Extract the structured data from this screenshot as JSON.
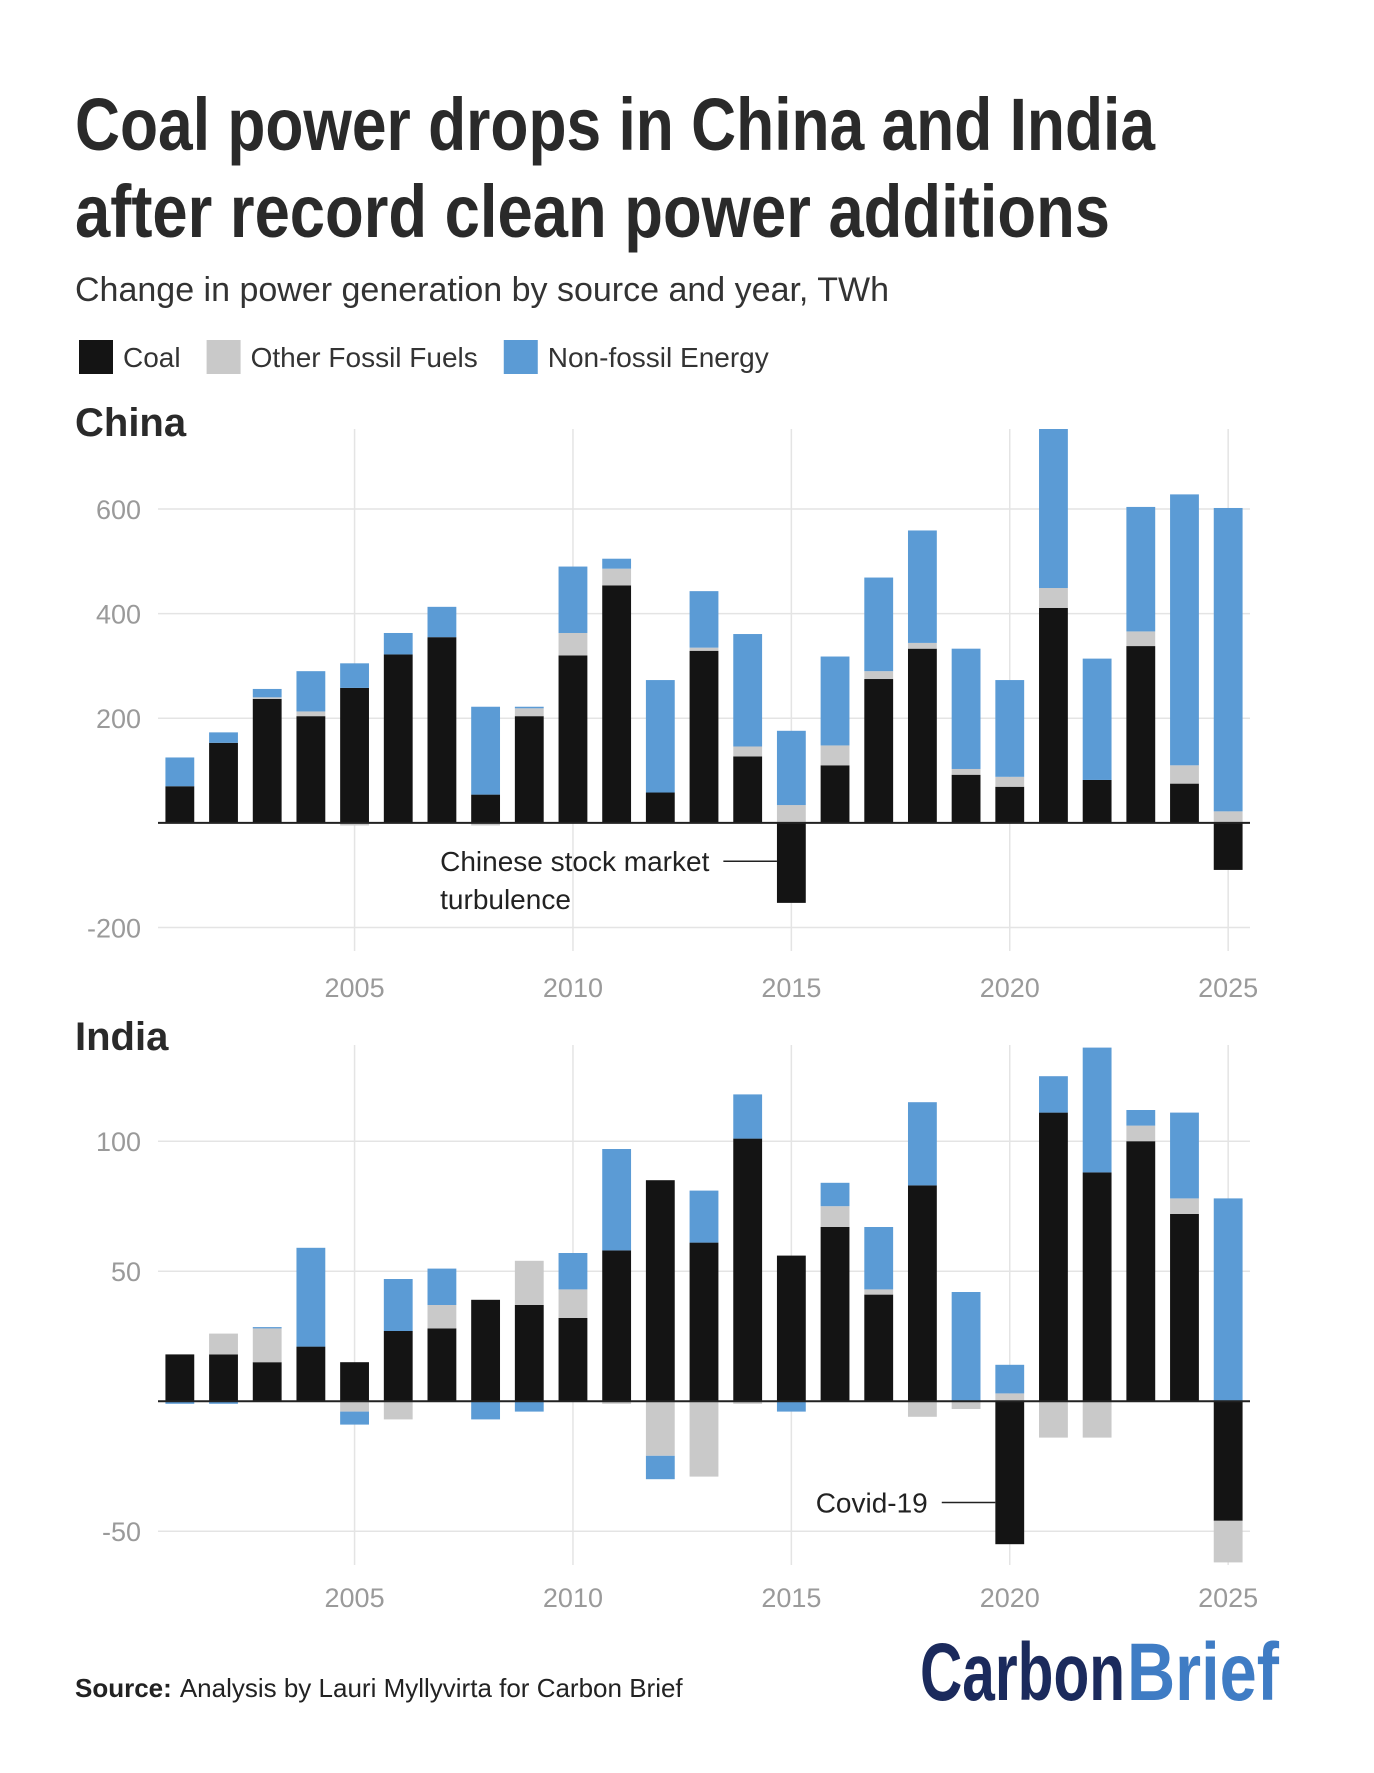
{
  "title": [
    "Coal power drops in China and India",
    "after record clean power additions"
  ],
  "subtitle": "Change in power generation by source and year, TWh",
  "source": {
    "label": "Source:",
    "text": "Analysis by Lauri Myllyvirta for Carbon Brief"
  },
  "logo": {
    "first": "Carbon",
    "second": "Brief"
  },
  "chart_data": [
    {
      "type": "bar",
      "stacked": true,
      "title": "China",
      "x": [
        2001,
        2002,
        2003,
        2004,
        2005,
        2006,
        2007,
        2008,
        2009,
        2010,
        2011,
        2012,
        2013,
        2014,
        2015,
        2016,
        2017,
        2018,
        2019,
        2020,
        2021,
        2022,
        2023,
        2024,
        2025
      ],
      "series": [
        {
          "name": "Coal",
          "color": "#141414",
          "values": [
            70,
            153,
            237,
            204,
            258,
            322,
            355,
            54,
            204,
            320,
            454,
            58,
            329,
            127,
            -153,
            110,
            275,
            333,
            92,
            69,
            411,
            82,
            338,
            75,
            -90
          ]
        },
        {
          "name": "Other Fossil Fuels",
          "color": "#c9c9c9",
          "values": [
            0,
            0,
            3,
            9,
            -5,
            0,
            0,
            -5,
            15,
            43,
            32,
            0,
            6,
            19,
            34,
            38,
            15,
            11,
            11,
            19,
            38,
            0,
            28,
            35,
            22
          ]
        },
        {
          "name": "Non-fossil Energy",
          "color": "#5b9bd5",
          "values": [
            55,
            20,
            16,
            77,
            47,
            41,
            58,
            168,
            3,
            127,
            19,
            215,
            108,
            215,
            142,
            170,
            179,
            215,
            230,
            185,
            304,
            232,
            238,
            518,
            580
          ]
        }
      ],
      "xlim": [
        2000.5,
        2025.5
      ],
      "xticks": [
        2005,
        2010,
        2015,
        2020,
        2025
      ],
      "ylim": [
        -245,
        753
      ],
      "yticks": [
        -200,
        200,
        400,
        600
      ],
      "grid": true,
      "annotations": [
        {
          "text": [
            "Chinese stock market",
            "turbulence"
          ],
          "x": 2015
        }
      ]
    },
    {
      "type": "bar",
      "stacked": true,
      "title": "India",
      "x": [
        2001,
        2002,
        2003,
        2004,
        2005,
        2006,
        2007,
        2008,
        2009,
        2010,
        2011,
        2012,
        2013,
        2014,
        2015,
        2016,
        2017,
        2018,
        2019,
        2020,
        2021,
        2022,
        2023,
        2024,
        2025
      ],
      "series": [
        {
          "name": "Coal",
          "color": "#141414",
          "values": [
            18,
            18,
            15,
            21,
            15,
            27,
            28,
            39,
            37,
            32,
            58,
            85,
            61,
            101,
            56,
            67,
            41,
            83,
            0,
            -55,
            111,
            88,
            100,
            72,
            -46
          ]
        },
        {
          "name": "Other Fossil Fuels",
          "color": "#c9c9c9",
          "values": [
            0,
            8,
            13,
            0,
            -4,
            -7,
            9,
            0,
            17,
            11,
            -1,
            -21,
            -29,
            -1,
            0,
            8,
            2,
            -6,
            -3,
            3,
            -14,
            -14,
            6,
            6,
            -16
          ]
        },
        {
          "name": "Non-fossil Energy",
          "color": "#5b9bd5",
          "values": [
            -1,
            -1,
            0.5,
            38,
            -5,
            20,
            14,
            -7,
            -4,
            14,
            39,
            -9,
            20,
            17,
            -4,
            9,
            24,
            32,
            42,
            11,
            14,
            48,
            6,
            33,
            78
          ]
        }
      ],
      "xlim": [
        2000.5,
        2025.5
      ],
      "xticks": [
        2005,
        2010,
        2015,
        2020,
        2025
      ],
      "ylim": [
        -63,
        137
      ],
      "yticks": [
        -50,
        50,
        100
      ],
      "grid": true,
      "annotations": [
        {
          "text": [
            "Covid-19"
          ],
          "x": 2020
        }
      ]
    }
  ]
}
